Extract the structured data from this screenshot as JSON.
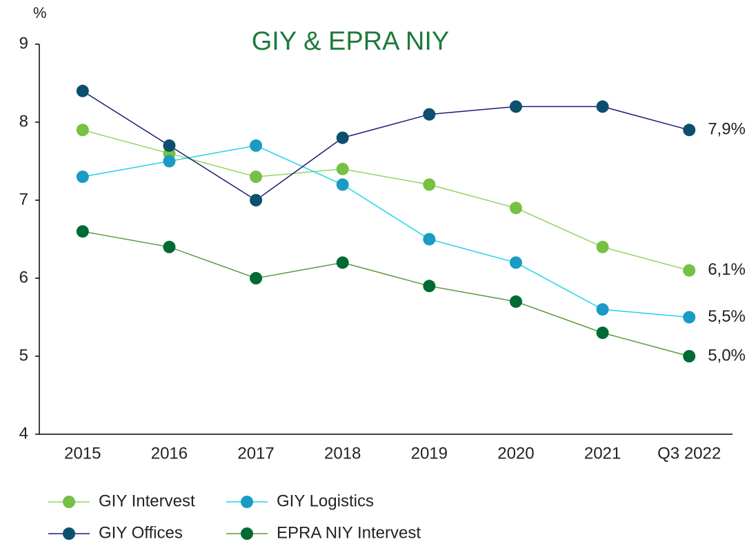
{
  "chart_data": {
    "type": "line",
    "title": "GIY & EPRA NIY",
    "y_label": "%",
    "categories": [
      "2015",
      "2016",
      "2017",
      "2018",
      "2019",
      "2020",
      "2021",
      "Q3 2022"
    ],
    "ylim": [
      4,
      9
    ],
    "yticks": [
      4,
      5,
      6,
      7,
      8,
      9
    ],
    "grid": false,
    "legend": "bottom",
    "series": [
      {
        "name": "GIY Intervest",
        "color": "#76c043",
        "line_color": "#8fd460",
        "values": [
          7.9,
          7.6,
          7.3,
          7.4,
          7.2,
          6.9,
          6.4,
          6.1
        ],
        "value_labels": [
          null,
          null,
          null,
          null,
          null,
          null,
          null,
          "6,1%"
        ]
      },
      {
        "name": "GIY Logistics",
        "color": "#1a9bc4",
        "line_color": "#22d3ea",
        "values": [
          7.3,
          7.5,
          7.7,
          7.2,
          6.5,
          6.2,
          5.6,
          5.5
        ],
        "value_labels": [
          null,
          null,
          null,
          null,
          null,
          null,
          null,
          "5,5%"
        ]
      },
      {
        "name": "GIY Offices",
        "color": "#0d4f6e",
        "line_color": "#1a1a78",
        "values": [
          8.4,
          7.7,
          7.0,
          7.8,
          8.1,
          8.2,
          8.2,
          7.9
        ],
        "value_labels": [
          null,
          null,
          null,
          null,
          null,
          null,
          null,
          "7,9%"
        ]
      },
      {
        "name": "EPRA NIY Intervest",
        "color": "#006a35",
        "line_color": "#5a9a3a",
        "values": [
          6.6,
          6.4,
          6.0,
          6.2,
          5.9,
          5.7,
          5.3,
          5.0
        ],
        "value_labels": [
          null,
          null,
          null,
          null,
          null,
          null,
          null,
          "5,0%"
        ]
      }
    ]
  }
}
